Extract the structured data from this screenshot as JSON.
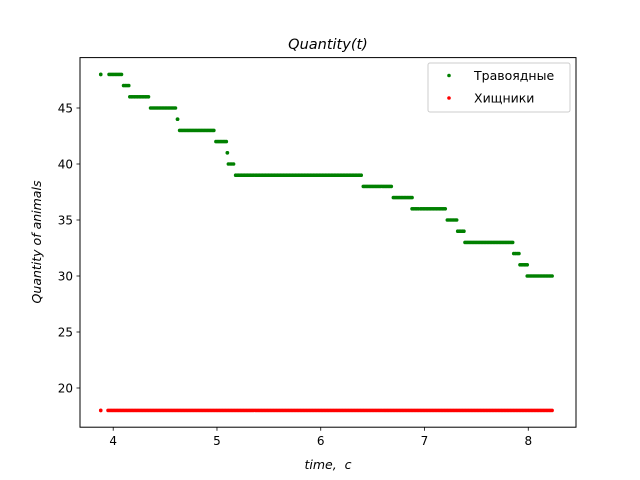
{
  "chart_data": {
    "type": "scatter",
    "title": "Quantity(t)",
    "xlabel": "time,  c",
    "ylabel": "Quantity of animals",
    "xlim": [
      3.68,
      4.5
    ],
    "ylim": [
      16.5,
      49.5
    ],
    "xticks": [
      4,
      5,
      6,
      7,
      8
    ],
    "yticks": [
      20,
      25,
      30,
      35,
      40,
      45
    ],
    "grid": false,
    "legend_position": "top-right",
    "series": [
      {
        "name": "Травоядные",
        "color": "#008000",
        "segments": [
          {
            "x": [
              3.88,
              3.88
            ],
            "y": 48
          },
          {
            "x": [
              3.96,
              4.08
            ],
            "y": 48
          },
          {
            "x": [
              4.1,
              4.15
            ],
            "y": 47
          },
          {
            "x": [
              4.16,
              4.34
            ],
            "y": 46
          },
          {
            "x": [
              4.36,
              4.6
            ],
            "y": 45
          },
          {
            "x": [
              4.62,
              4.62
            ],
            "y": 44
          },
          {
            "x": [
              4.64,
              4.97
            ],
            "y": 43
          },
          {
            "x": [
              4.99,
              5.09
            ],
            "y": 42
          },
          {
            "x": [
              5.1,
              5.1
            ],
            "y": 41
          },
          {
            "x": [
              5.11,
              5.16
            ],
            "y": 40
          },
          {
            "x": [
              5.18,
              6.39
            ],
            "y": 39
          },
          {
            "x": [
              6.41,
              6.68
            ],
            "y": 38
          },
          {
            "x": [
              6.7,
              6.88
            ],
            "y": 37
          },
          {
            "x": [
              6.88,
              6.94
            ],
            "y": 36
          },
          {
            "x": [
              6.96,
              7.2
            ],
            "y": 36
          },
          {
            "x": [
              7.22,
              7.31
            ],
            "y": 35
          },
          {
            "x": [
              7.32,
              7.38
            ],
            "y": 34
          },
          {
            "x": [
              7.39,
              7.85
            ],
            "y": 33
          },
          {
            "x": [
              7.86,
              7.91
            ],
            "y": 32
          },
          {
            "x": [
              7.92,
              7.99
            ],
            "y": 31
          },
          {
            "x": [
              7.99,
              8.23
            ],
            "y": 30
          }
        ]
      },
      {
        "name": "Хищники",
        "color": "#ff0000",
        "segments": [
          {
            "x": [
              3.88,
              3.88
            ],
            "y": 18
          },
          {
            "x": [
              3.95,
              8.23
            ],
            "y": 18
          }
        ]
      }
    ]
  }
}
